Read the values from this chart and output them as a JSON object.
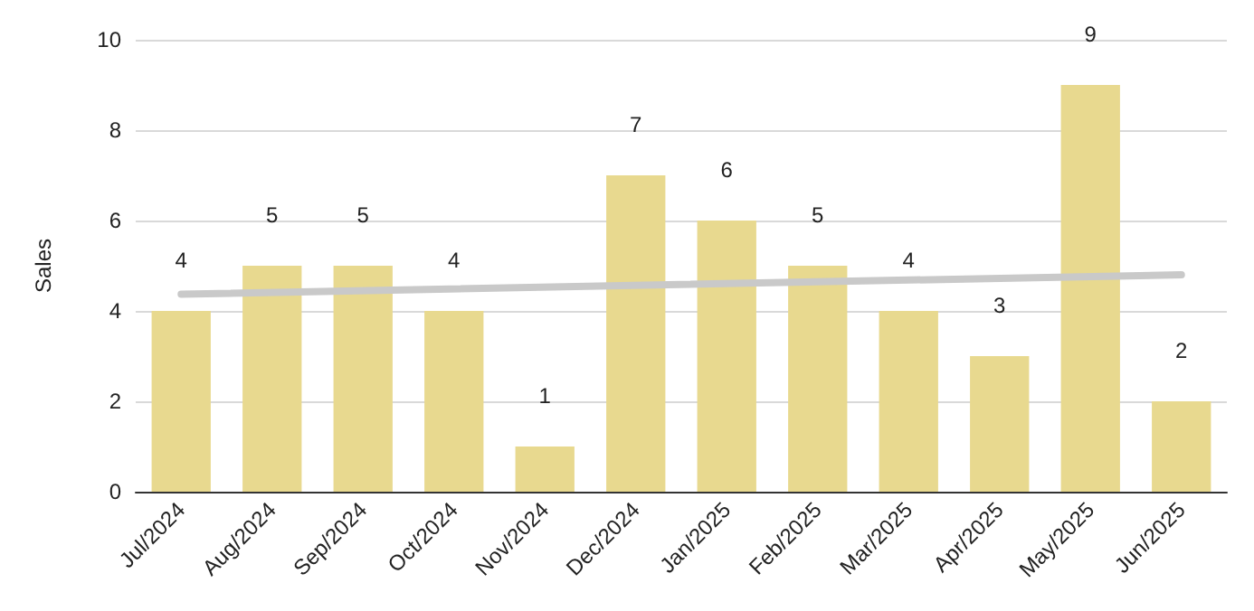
{
  "chart_data": {
    "type": "bar",
    "ylabel": "Sales",
    "categories": [
      "Jul/2024",
      "Aug/2024",
      "Sep/2024",
      "Oct/2024",
      "Nov/2024",
      "Dec/2024",
      "Jan/2025",
      "Feb/2025",
      "Mar/2025",
      "Apr/2025",
      "May/2025",
      "Jun/2025"
    ],
    "series": [
      {
        "color": "#e8d98f",
        "values": [
          4,
          5,
          5,
          4,
          1,
          7,
          6,
          5,
          4,
          3,
          9,
          2
        ],
        "data_labels": true
      },
      {
        "type": "line",
        "color": "#c9c9c9",
        "x": [
          "Jul/2024",
          "Jun/2025"
        ],
        "values": [
          4.37,
          4.8
        ]
      }
    ],
    "ylim": [
      0,
      10
    ],
    "yticks": [
      0,
      2,
      4,
      6,
      8,
      10
    ],
    "grid": "y",
    "marker": "none"
  }
}
